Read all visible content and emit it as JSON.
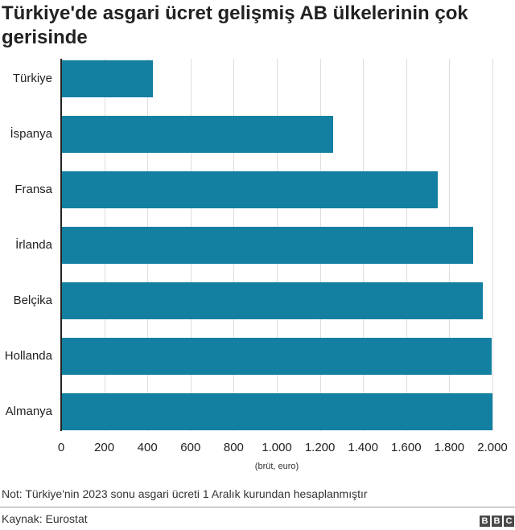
{
  "chart_data": {
    "type": "bar",
    "orientation": "horizontal",
    "title": "Türkiye'de asgari ücret gelişmiş AB ülkelerinin çok gerisinde",
    "categories": [
      "Türkiye",
      "İspanya",
      "Fransa",
      "İrlanda",
      "Belçika",
      "Hollanda",
      "Almanya"
    ],
    "values": [
      427,
      1260,
      1747,
      1910,
      1955,
      1995,
      2000
    ],
    "xlabel": "(brüt, euro)",
    "ylabel": "",
    "xlim": [
      0,
      2000
    ],
    "xticks": [
      "0",
      "200",
      "400",
      "600",
      "800",
      "1.000",
      "1.200",
      "1.400",
      "1.600",
      "1.800",
      "2.000"
    ],
    "grid": true,
    "bar_color": "#1380a1"
  },
  "title": "Türkiye'de asgari ücret gelişmiş AB ülkelerinin çok gerisinde",
  "note": "Not: Türkiye'nin 2023 sonu asgari ücreti 1 Aralık kurundan hesaplanmıştır",
  "source": "Kaynak: Eurostat",
  "logo": [
    "B",
    "B",
    "C"
  ]
}
